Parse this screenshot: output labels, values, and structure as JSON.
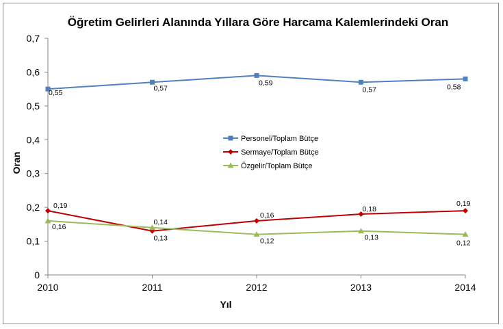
{
  "chart_data": {
    "type": "line",
    "title": "Öğretim Gelirleri Alanında Yıllara Göre Harcama Kalemlerindeki  Oran",
    "xlabel": "Yıl",
    "ylabel": "Oran",
    "categories": [
      "2010",
      "2011",
      "2012",
      "2013",
      "2014"
    ],
    "ylim": [
      0,
      0.7
    ],
    "yticks": [
      "0",
      "0,1",
      "0,2",
      "0,3",
      "0,4",
      "0,5",
      "0,6",
      "0,7"
    ],
    "ytick_values": [
      0,
      0.1,
      0.2,
      0.3,
      0.4,
      0.5,
      0.6,
      0.7
    ],
    "grid": false,
    "legend_position": "center",
    "series": [
      {
        "name": "Personel/Toplam Bütçe",
        "values": [
          0.55,
          0.57,
          0.59,
          0.57,
          0.58
        ],
        "labels": [
          "0,55",
          "0,57",
          "0,59",
          "0,57",
          "0,58"
        ],
        "color": "#4f81bd",
        "marker": "square"
      },
      {
        "name": "Sermaye/Toplam Bütçe",
        "values": [
          0.19,
          0.13,
          0.16,
          0.18,
          0.19
        ],
        "labels": [
          "0,19",
          "0,13",
          "0,16",
          "0,18",
          "0,19"
        ],
        "color": "#c00000",
        "marker": "diamond"
      },
      {
        "name": "Özgelir/Toplam Bütçe",
        "values": [
          0.16,
          0.14,
          0.12,
          0.13,
          0.12
        ],
        "labels": [
          "0,16",
          "0,14",
          "0,12",
          "0,13",
          "0,12"
        ],
        "color": "#9bbb59",
        "marker": "triangle"
      }
    ]
  }
}
